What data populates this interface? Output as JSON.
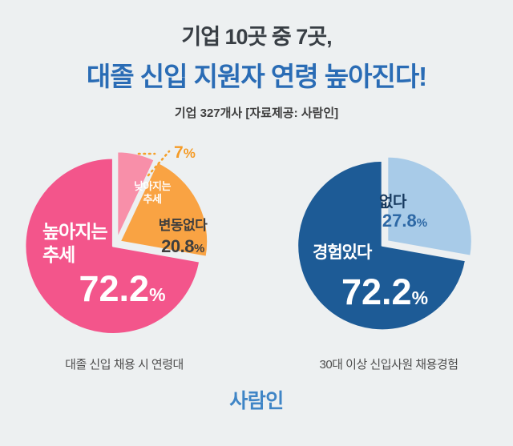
{
  "page": {
    "background": "#edf0f1"
  },
  "header": {
    "title_line1": "기업 10곳 중 7곳,",
    "title_line2": "대졸 신입 지원자 연령 높아진다!",
    "subtitle": "기업 327개사 [자료제공: 사람인]"
  },
  "chart_data": [
    {
      "type": "pie",
      "title": "대졸 신입 채용 시 연령대",
      "unit": "%",
      "start_angle_deg": 0,
      "legend_position": "none",
      "slices": [
        {
          "label": "낮아지는 추세",
          "label_lines": [
            "낮아지는",
            "추세"
          ],
          "value": 7,
          "value_display": "7",
          "color": "#f88fa9"
        },
        {
          "label": "변동없다",
          "value": 20.8,
          "value_display": "20.8",
          "color": "#f9a343"
        },
        {
          "label": "높아지는 추세",
          "label_lines": [
            "높아지는",
            "추세"
          ],
          "value": 72.2,
          "value_display": "72.2",
          "color": "#f3558b"
        }
      ]
    },
    {
      "type": "pie",
      "title": "30대 이상 신입사원 채용경험",
      "unit": "%",
      "start_angle_deg": 0,
      "legend_position": "none",
      "slices": [
        {
          "label": "없다",
          "value": 27.8,
          "value_display": "27.8",
          "color": "#a8cbe8"
        },
        {
          "label": "경험있다",
          "value": 72.2,
          "value_display": "72.2",
          "color": "#1d5b96"
        }
      ]
    }
  ],
  "footer": {
    "logo_text": "사람인"
  }
}
